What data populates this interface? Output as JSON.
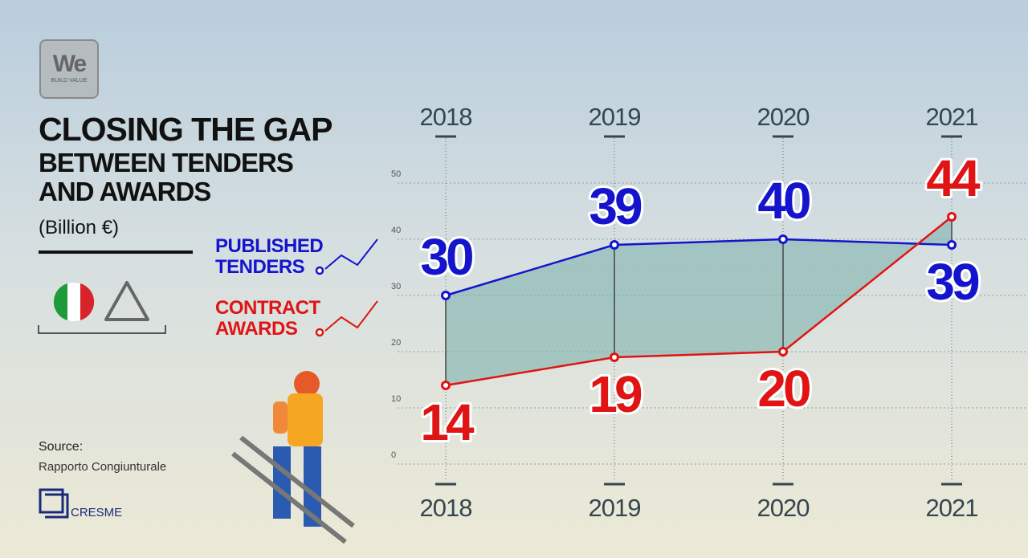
{
  "logo": {
    "text": "We",
    "tagline": "BUILD VALUE"
  },
  "chart_data": {
    "type": "line",
    "title": "CLOSING THE GAP",
    "subtitle": "BETWEEN TENDERS AND AWARDS",
    "unit": "(Billion €)",
    "categories": [
      "2018",
      "2019",
      "2020",
      "2021"
    ],
    "series": [
      {
        "name": "PUBLISHED TENDERS",
        "color": "#1414cc",
        "values": [
          30,
          39,
          40,
          39
        ]
      },
      {
        "name": "CONTRACT AWARDS",
        "color": "#e01414",
        "values": [
          14,
          19,
          20,
          44
        ]
      }
    ],
    "ylim": [
      0,
      50
    ],
    "yticks": [
      0,
      10,
      20,
      30,
      40,
      50
    ],
    "grid": true,
    "fill_between_color": "#7fb3ad"
  },
  "source": {
    "label": "Source:",
    "text": "Rapporto Congiunturale",
    "org": "CRESME"
  }
}
